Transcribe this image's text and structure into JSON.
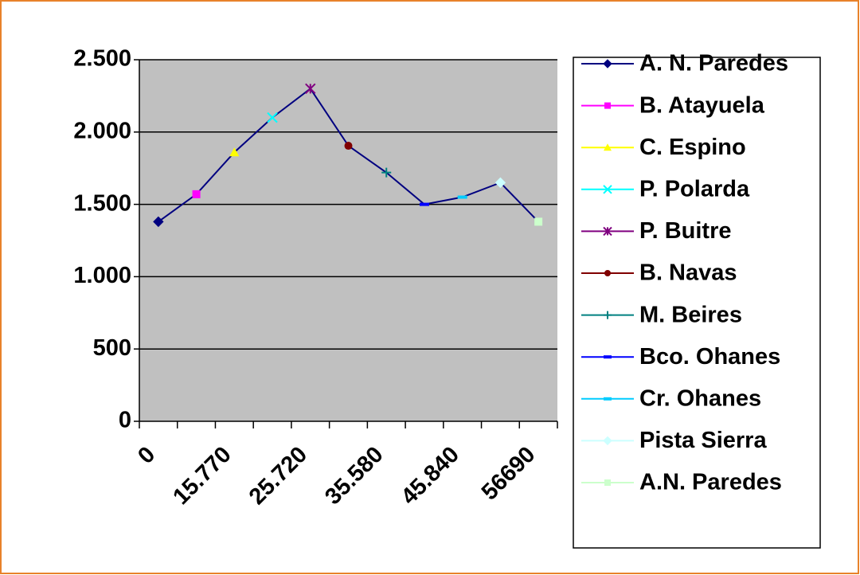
{
  "chart_data": {
    "type": "line",
    "categories": [
      "0",
      null,
      "15.770",
      null,
      "25.720",
      null,
      "35.580",
      null,
      "45.840",
      null,
      "56690"
    ],
    "values": [
      1380,
      1570,
      1860,
      2100,
      2300,
      1905,
      1720,
      1500,
      1550,
      1650,
      1380
    ],
    "line_color": "#000080",
    "points": [
      {
        "name": "A. N. Paredes",
        "color": "#000080",
        "marker": "diamond"
      },
      {
        "name": "B. Atayuela",
        "color": "#FF00FF",
        "marker": "square"
      },
      {
        "name": "C. Espino",
        "color": "#FFFF00",
        "marker": "triangle"
      },
      {
        "name": "P. Polarda",
        "color": "#00FFFF",
        "marker": "x"
      },
      {
        "name": "P. Buitre",
        "color": "#800080",
        "marker": "star"
      },
      {
        "name": "B. Navas",
        "color": "#800000",
        "marker": "circle"
      },
      {
        "name": "M. Beires",
        "color": "#008080",
        "marker": "plus"
      },
      {
        "name": "Bco. Ohanes",
        "color": "#0000FF",
        "marker": "dash"
      },
      {
        "name": "Cr. Ohanes",
        "color": "#00CCFF",
        "marker": "dash"
      },
      {
        "name": "Pista Sierra",
        "color": "#CCFFFF",
        "marker": "diamond"
      },
      {
        "name": "A.N. Paredes",
        "color": "#CCFFCC",
        "marker": "square"
      }
    ],
    "ylim": [
      0,
      2500
    ],
    "yticks": [
      0,
      500,
      {
        "value": 1000,
        "label": "1.000"
      },
      {
        "value": 1500,
        "label": "1.500"
      },
      {
        "value": 2000,
        "label": "2.000"
      },
      {
        "value": 2500,
        "label": "2.500"
      }
    ],
    "grid": true,
    "plot_background": "#C0C0C0",
    "legend": "right"
  }
}
